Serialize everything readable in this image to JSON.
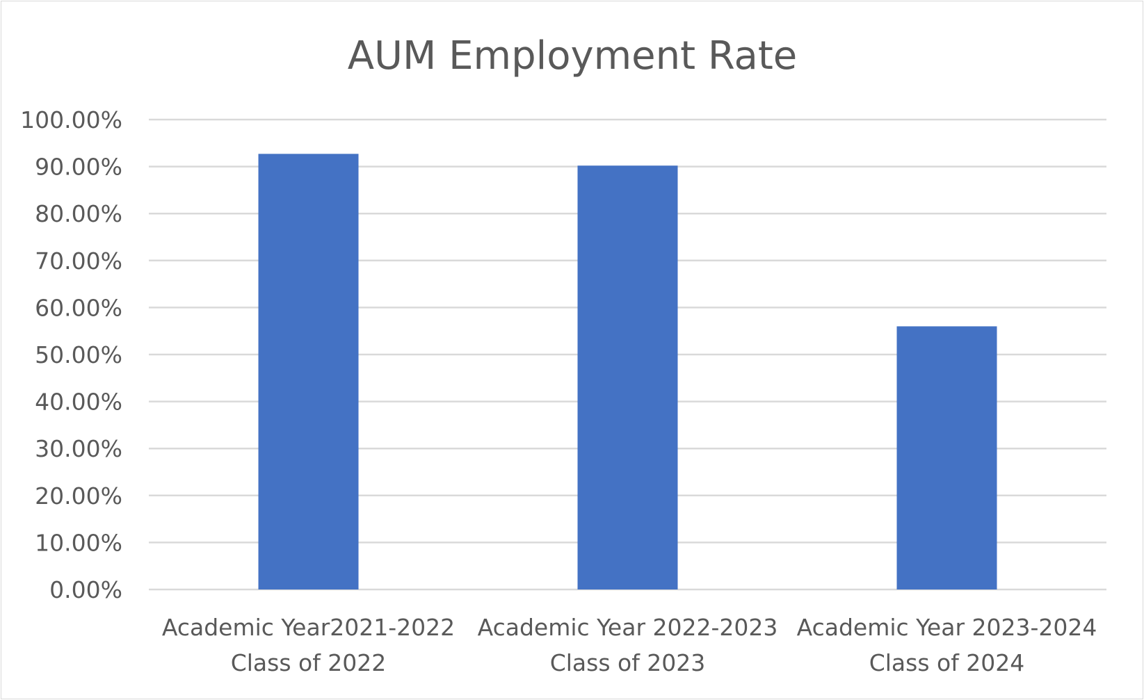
{
  "chart_data": {
    "type": "bar",
    "title": "AUM Employment Rate",
    "xlabel": "",
    "ylabel": "",
    "categories": [
      [
        "Academic Year2021-2022",
        "Class of 2022"
      ],
      [
        "Academic Year 2022-2023",
        "Class of 2023"
      ],
      [
        "Academic Year 2023-2024",
        "Class of 2024"
      ]
    ],
    "values": [
      0.927,
      0.902,
      0.56
    ],
    "ylim": [
      0,
      1
    ],
    "y_ticks": [
      0,
      0.1,
      0.2,
      0.3,
      0.4,
      0.5,
      0.6,
      0.7,
      0.8,
      0.9,
      1.0
    ],
    "y_tick_labels": [
      "0.00%",
      "10.00%",
      "20.00%",
      "30.00%",
      "40.00%",
      "50.00%",
      "60.00%",
      "70.00%",
      "80.00%",
      "90.00%",
      "100.00%"
    ],
    "grid": true,
    "legend": "none",
    "bar_color": "#4472C4",
    "grid_color": "#D9D9D9",
    "text_color": "#595959"
  }
}
